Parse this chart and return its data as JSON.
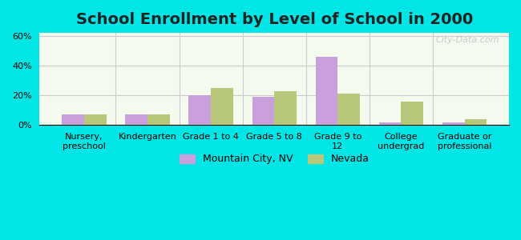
{
  "title": "School Enrollment by Level of School in 2000",
  "categories": [
    "Nursery,\npreschool",
    "Kindergarten",
    "Grade 1 to 4",
    "Grade 5 to 8",
    "Grade 9 to\n12",
    "College\nundergrad",
    "Graduate or\nprofessional"
  ],
  "mountain_city": [
    7,
    7,
    20,
    19,
    46,
    2,
    2
  ],
  "nevada": [
    7,
    7,
    25,
    23,
    21,
    16,
    4
  ],
  "mountain_city_color": "#c9a0dc",
  "nevada_color": "#b8c87a",
  "background_outer": "#00e5e5",
  "background_inner_top": "#f0fff0",
  "background_inner_bottom": "#e8f5e8",
  "grid_color": "#cccccc",
  "title_fontsize": 14,
  "tick_fontsize": 8,
  "legend_label_mc": "Mountain City, NV",
  "legend_label_nv": "Nevada",
  "ylim": [
    0,
    62
  ],
  "yticks": [
    0,
    20,
    40,
    60
  ],
  "yticklabels": [
    "0%",
    "20%",
    "40%",
    "60%"
  ]
}
